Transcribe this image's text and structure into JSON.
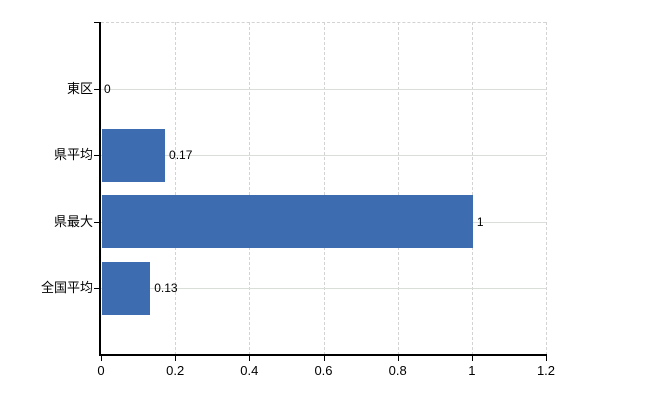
{
  "chart_data": {
    "type": "bar",
    "orientation": "horizontal",
    "title": "",
    "xlabel": "",
    "ylabel": "",
    "categories": [
      "東区",
      "県平均",
      "県最大",
      "全国平均"
    ],
    "values": [
      0,
      0.17,
      1,
      0.13
    ],
    "data_labels": [
      "0",
      "0.17",
      "1",
      "0.13"
    ],
    "xlim": [
      0,
      1.2
    ],
    "x_tick_values": [
      0,
      0.2,
      0.4,
      0.6,
      0.8,
      1,
      1.2
    ],
    "x_tick_labels": [
      "0",
      "0.2",
      "0.4",
      "0.6",
      "0.8",
      "1",
      "1.2"
    ],
    "grid": true,
    "legend": false,
    "colors": {
      "bar": "#3d6cb1",
      "axis": "#000000",
      "vertical_gridline": "#d3d3d3",
      "horizontal_gridline": "#d9ded9",
      "text": "#000000"
    }
  }
}
